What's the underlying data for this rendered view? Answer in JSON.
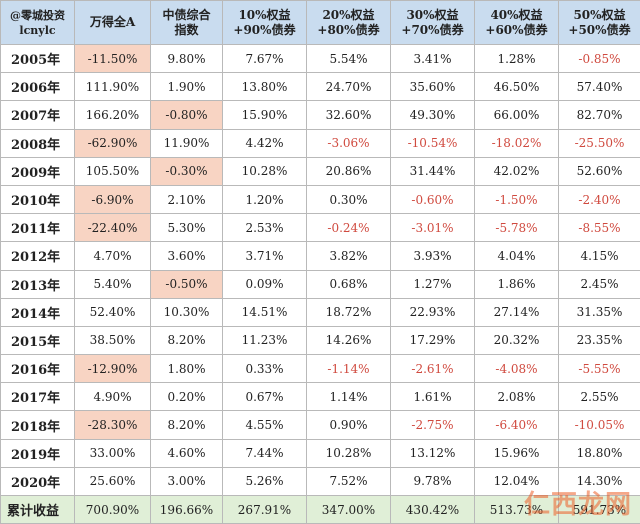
{
  "header": {
    "brand_line1": "@零城投资",
    "brand_line2": "lcnylc",
    "columns": [
      [
        "万得全A"
      ],
      [
        "中债综合",
        "指数"
      ],
      [
        "10%权益",
        "+90%债券"
      ],
      [
        "20%权益",
        "+80%债券"
      ],
      [
        "30%权益",
        "+70%债券"
      ],
      [
        "40%权益",
        "+60%债券"
      ],
      [
        "50%权益",
        "+50%债券"
      ]
    ]
  },
  "rows": [
    {
      "year": "2005年",
      "values": [
        "-11.50%",
        "9.80%",
        "7.67%",
        "5.54%",
        "3.41%",
        "1.28%",
        "-0.85%"
      ]
    },
    {
      "year": "2006年",
      "values": [
        "111.90%",
        "1.90%",
        "13.80%",
        "24.70%",
        "35.60%",
        "46.50%",
        "57.40%"
      ]
    },
    {
      "year": "2007年",
      "values": [
        "166.20%",
        "-0.80%",
        "15.90%",
        "32.60%",
        "49.30%",
        "66.00%",
        "82.70%"
      ]
    },
    {
      "year": "2008年",
      "values": [
        "-62.90%",
        "11.90%",
        "4.42%",
        "-3.06%",
        "-10.54%",
        "-18.02%",
        "-25.50%"
      ]
    },
    {
      "year": "2009年",
      "values": [
        "105.50%",
        "-0.30%",
        "10.28%",
        "20.86%",
        "31.44%",
        "42.02%",
        "52.60%"
      ]
    },
    {
      "year": "2010年",
      "values": [
        "-6.90%",
        "2.10%",
        "1.20%",
        "0.30%",
        "-0.60%",
        "-1.50%",
        "-2.40%"
      ]
    },
    {
      "year": "2011年",
      "values": [
        "-22.40%",
        "5.30%",
        "2.53%",
        "-0.24%",
        "-3.01%",
        "-5.78%",
        "-8.55%"
      ]
    },
    {
      "year": "2012年",
      "values": [
        "4.70%",
        "3.60%",
        "3.71%",
        "3.82%",
        "3.93%",
        "4.04%",
        "4.15%"
      ]
    },
    {
      "year": "2013年",
      "values": [
        "5.40%",
        "-0.50%",
        "0.09%",
        "0.68%",
        "1.27%",
        "1.86%",
        "2.45%"
      ]
    },
    {
      "year": "2014年",
      "values": [
        "52.40%",
        "10.30%",
        "14.51%",
        "18.72%",
        "22.93%",
        "27.14%",
        "31.35%"
      ]
    },
    {
      "year": "2015年",
      "values": [
        "38.50%",
        "8.20%",
        "11.23%",
        "14.26%",
        "17.29%",
        "20.32%",
        "23.35%"
      ]
    },
    {
      "year": "2016年",
      "values": [
        "-12.90%",
        "1.80%",
        "0.33%",
        "-1.14%",
        "-2.61%",
        "-4.08%",
        "-5.55%"
      ]
    },
    {
      "year": "2017年",
      "values": [
        "4.90%",
        "0.20%",
        "0.67%",
        "1.14%",
        "1.61%",
        "2.08%",
        "2.55%"
      ]
    },
    {
      "year": "2018年",
      "values": [
        "-28.30%",
        "8.20%",
        "4.55%",
        "0.90%",
        "-2.75%",
        "-6.40%",
        "-10.05%"
      ]
    },
    {
      "year": "2019年",
      "values": [
        "33.00%",
        "4.60%",
        "7.44%",
        "10.28%",
        "13.12%",
        "15.96%",
        "18.80%"
      ]
    },
    {
      "year": "2020年",
      "values": [
        "25.60%",
        "3.00%",
        "5.26%",
        "7.52%",
        "9.78%",
        "12.04%",
        "14.30%"
      ]
    }
  ],
  "total": {
    "label": "累计收益",
    "values": [
      "700.90%",
      "196.66%",
      "267.91%",
      "347.00%",
      "430.42%",
      "513.73%",
      "591.73%"
    ]
  },
  "watermark": "仁西龙网",
  "colors": {
    "header_bg": "#c9dcef",
    "highlight_bg": "#f8d4c3",
    "negative_text": "#d04a3f",
    "total_bg": "#e0efd7",
    "watermark": "#ec5e28"
  }
}
